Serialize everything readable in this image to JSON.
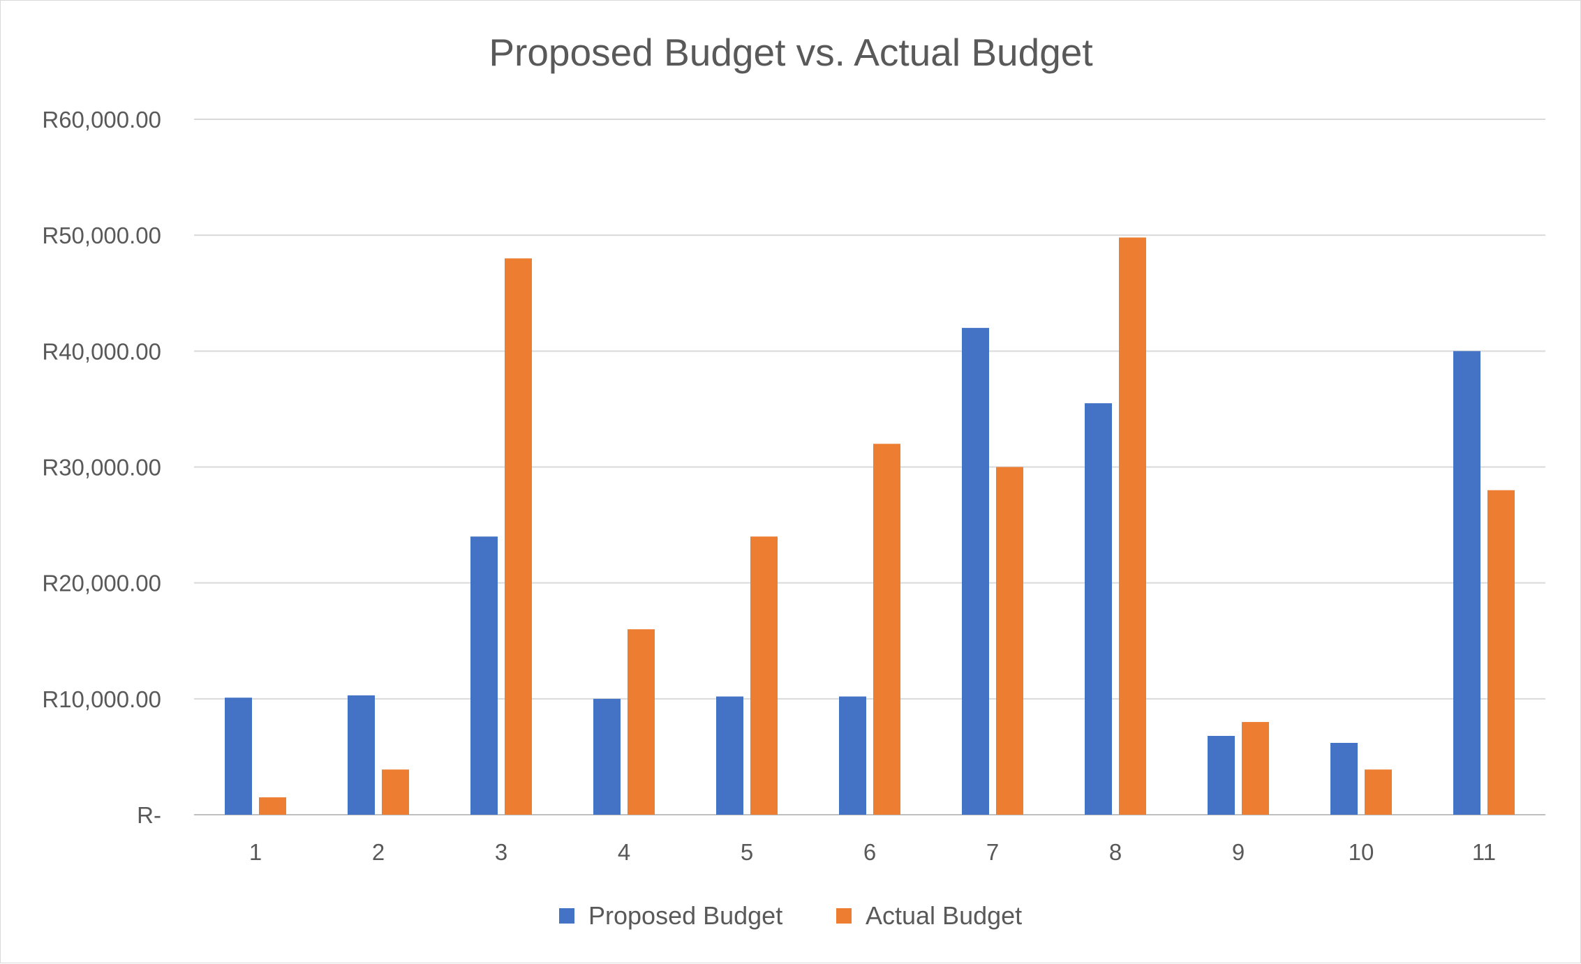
{
  "chart_data": {
    "type": "bar",
    "title": "Proposed Budget vs. Actual Budget",
    "categories": [
      "1",
      "2",
      "3",
      "4",
      "5",
      "6",
      "7",
      "8",
      "9",
      "10",
      "11"
    ],
    "series": [
      {
        "name": "Proposed Budget",
        "color": "#4472c4",
        "values": [
          10100,
          10300,
          24000,
          10000,
          10200,
          10200,
          42000,
          35500,
          6800,
          6200,
          40000
        ]
      },
      {
        "name": "Actual Budget",
        "color": "#ed7d31",
        "values": [
          1500,
          3900,
          48000,
          16000,
          24000,
          32000,
          30000,
          49800,
          8000,
          3900,
          28000
        ]
      }
    ],
    "ylim": [
      0,
      60000
    ],
    "y_ticks": [
      {
        "value": 0,
        "label": "R-"
      },
      {
        "value": 10000,
        "label": "R10,000.00"
      },
      {
        "value": 20000,
        "label": "R20,000.00"
      },
      {
        "value": 30000,
        "label": "R30,000.00"
      },
      {
        "value": 40000,
        "label": "R40,000.00"
      },
      {
        "value": 50000,
        "label": "R50,000.00"
      },
      {
        "value": 60000,
        "label": "R60,000.00"
      }
    ],
    "grid": true,
    "legend_position": "bottom",
    "xlabel": "",
    "ylabel": ""
  }
}
